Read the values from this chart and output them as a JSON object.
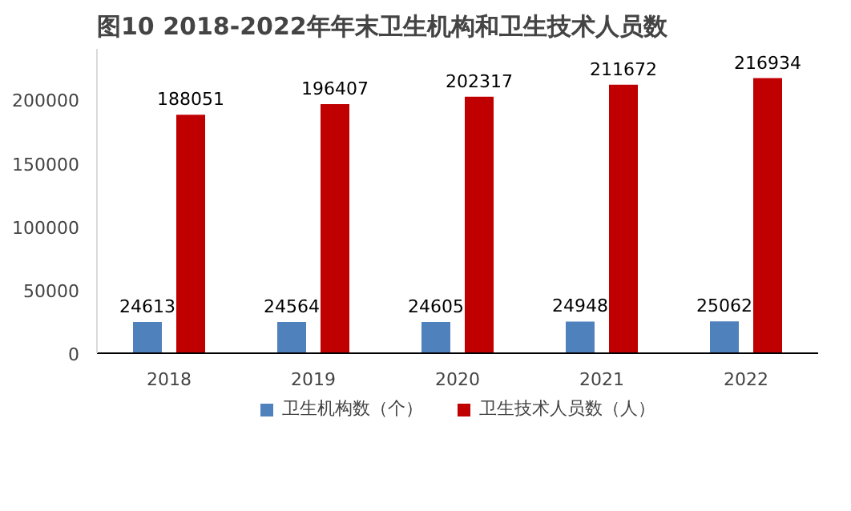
{
  "chart_data": {
    "type": "bar",
    "title": "图10  2018-2022年年末卫生机构和卫生技术人员数",
    "categories": [
      "2018",
      "2019",
      "2020",
      "2021",
      "2022"
    ],
    "series": [
      {
        "name": "卫生机构数（个）",
        "color": "#4f81bd",
        "values": [
          24613,
          24564,
          24605,
          24948,
          25062
        ]
      },
      {
        "name": "卫生技术人员数（人）",
        "color": "#c00000",
        "values": [
          188051,
          196407,
          202317,
          211672,
          216934
        ]
      }
    ],
    "ylim": [
      0,
      240000
    ],
    "yticks": [
      0,
      50000,
      100000,
      150000,
      200000
    ],
    "grid": false,
    "legend": "bottom",
    "data_labels": true
  }
}
